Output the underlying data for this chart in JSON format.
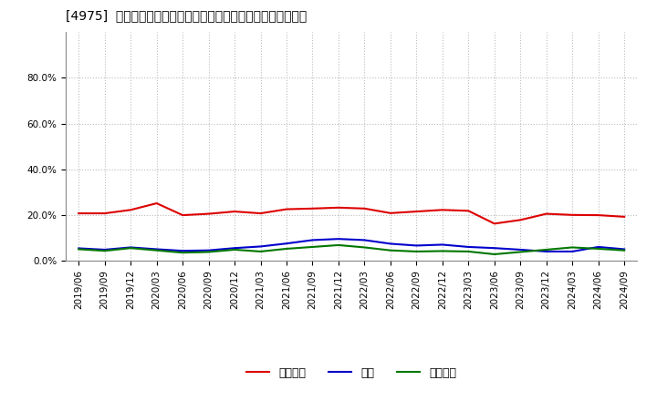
{
  "title": "[4975]  売上債権、在庫、買入債務の総資産に対する比率の推移",
  "dates": [
    "2019/06",
    "2019/09",
    "2019/12",
    "2020/03",
    "2020/06",
    "2020/09",
    "2020/12",
    "2021/03",
    "2021/06",
    "2021/09",
    "2021/12",
    "2022/03",
    "2022/06",
    "2022/09",
    "2022/12",
    "2023/03",
    "2023/06",
    "2023/09",
    "2023/12",
    "2024/03",
    "2024/06",
    "2024/09"
  ],
  "urikake": [
    0.207,
    0.207,
    0.222,
    0.251,
    0.199,
    0.205,
    0.215,
    0.207,
    0.225,
    0.228,
    0.232,
    0.228,
    0.208,
    0.215,
    0.222,
    0.218,
    0.162,
    0.178,
    0.205,
    0.2,
    0.199,
    0.192
  ],
  "zaiko": [
    0.054,
    0.048,
    0.058,
    0.05,
    0.043,
    0.045,
    0.055,
    0.062,
    0.075,
    0.09,
    0.095,
    0.09,
    0.074,
    0.066,
    0.07,
    0.06,
    0.055,
    0.048,
    0.04,
    0.04,
    0.06,
    0.05
  ],
  "kaiire": [
    0.05,
    0.043,
    0.055,
    0.045,
    0.035,
    0.038,
    0.048,
    0.04,
    0.052,
    0.06,
    0.068,
    0.058,
    0.045,
    0.04,
    0.042,
    0.04,
    0.028,
    0.038,
    0.048,
    0.058,
    0.052,
    0.045
  ],
  "urikake_color": "#dd0000",
  "zaiko_color": "#0000cc",
  "kaiire_color": "#007700",
  "ylim": [
    0.0,
    1.0
  ],
  "yticks": [
    0.0,
    0.2,
    0.4,
    0.6,
    0.8
  ],
  "legend_labels": [
    "売上債権",
    "在庫",
    "買入債務"
  ],
  "background_color": "#ffffff",
  "grid_color": "#bbbbbb",
  "title_fontsize": 11,
  "tick_fontsize": 7.5,
  "legend_fontsize": 9
}
